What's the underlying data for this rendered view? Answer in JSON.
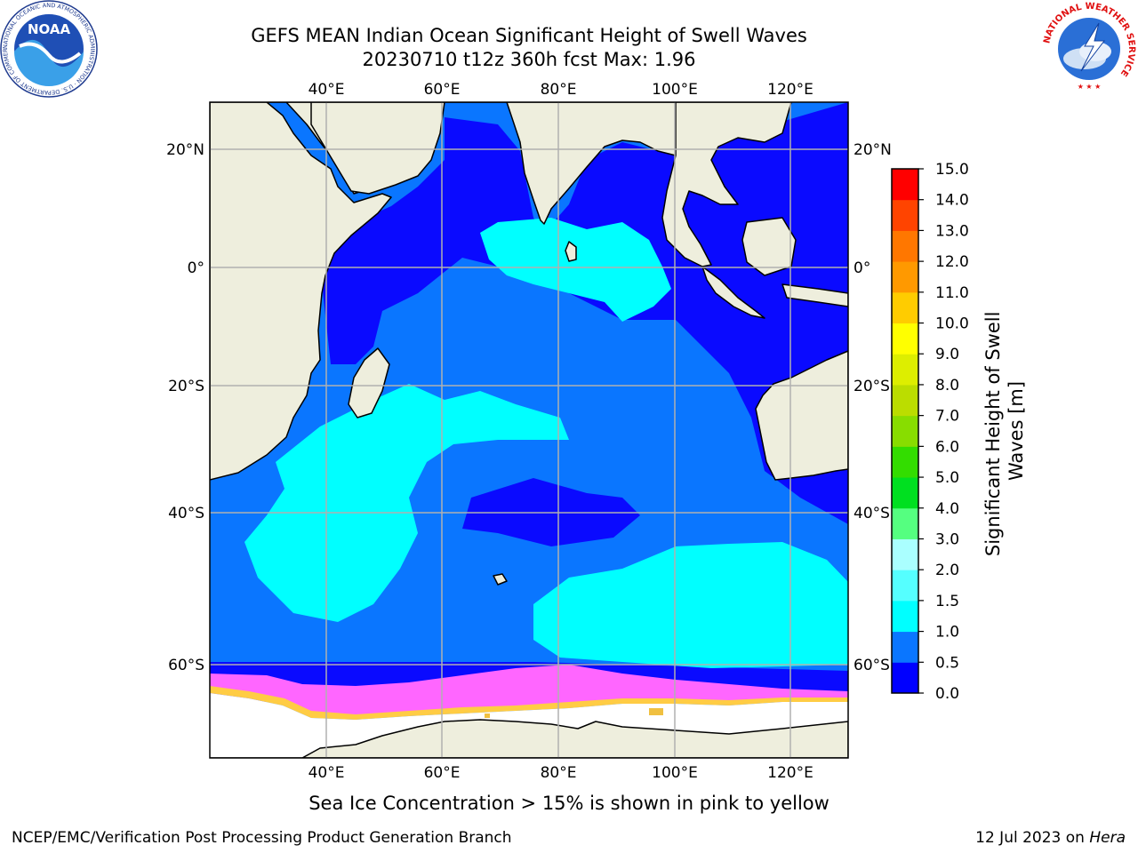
{
  "header": {
    "title_line1": "GEFS MEAN Indian Ocean Significant Height of Swell Waves",
    "title_line2": "20230710 t12z 360h fcst   Max: 1.96"
  },
  "logos": {
    "noaa": {
      "center_text": "NOAA",
      "ring_text": "NATIONAL OCEANIC AND ATMOSPHERIC ADMINISTRATION · U.S. DEPARTMENT OF COMMERCE"
    },
    "nws": {
      "ring_text": "NATIONAL WEATHER SERVICE"
    }
  },
  "map": {
    "lon_ticks": [
      "40°E",
      "60°E",
      "80°E",
      "100°E",
      "120°E"
    ],
    "lat_ticks": [
      "20°N",
      "0°",
      "20°S",
      "40°S",
      "60°S"
    ],
    "lon_values": [
      40,
      60,
      80,
      100,
      120
    ],
    "lat_values": [
      20,
      0,
      -20,
      -40,
      -60
    ],
    "extent": {
      "lon": [
        20,
        130
      ],
      "lat": [
        -72,
        28
      ]
    },
    "grid": true,
    "colors": {
      "land": "#eeeedd",
      "swell_0_0.5": "#0a0aff",
      "swell_0.5_1.0": "#0a76ff",
      "swell_1.0_1.5": "#00ffff",
      "ice_low": "#ff66ff",
      "ice_high": "#f0c040"
    }
  },
  "colorbar": {
    "label": "Significant Height of Swell Waves [m]",
    "ticks": [
      "0.0",
      "0.5",
      "1.0",
      "1.5",
      "2.0",
      "3.0",
      "4.0",
      "5.0",
      "6.0",
      "7.0",
      "8.0",
      "9.0",
      "10.0",
      "11.0",
      "12.0",
      "13.0",
      "14.0",
      "15.0"
    ],
    "colors": [
      "#0000ff",
      "#0a76ff",
      "#00ffff",
      "#55ffff",
      "#aaffff",
      "#55ff80",
      "#00e020",
      "#33dd00",
      "#88dd00",
      "#bbdd00",
      "#ddee00",
      "#ffff00",
      "#ffcc00",
      "#ff9900",
      "#ff7700",
      "#ff4400",
      "#ff0000"
    ]
  },
  "footer": {
    "ice_note": "Sea Ice Concentration > 15% is shown in pink to yellow",
    "credit": "NCEP/EMC/Verification Post Processing Product Generation Branch",
    "date": "12 Jul 2023 on",
    "host": "Hera"
  }
}
